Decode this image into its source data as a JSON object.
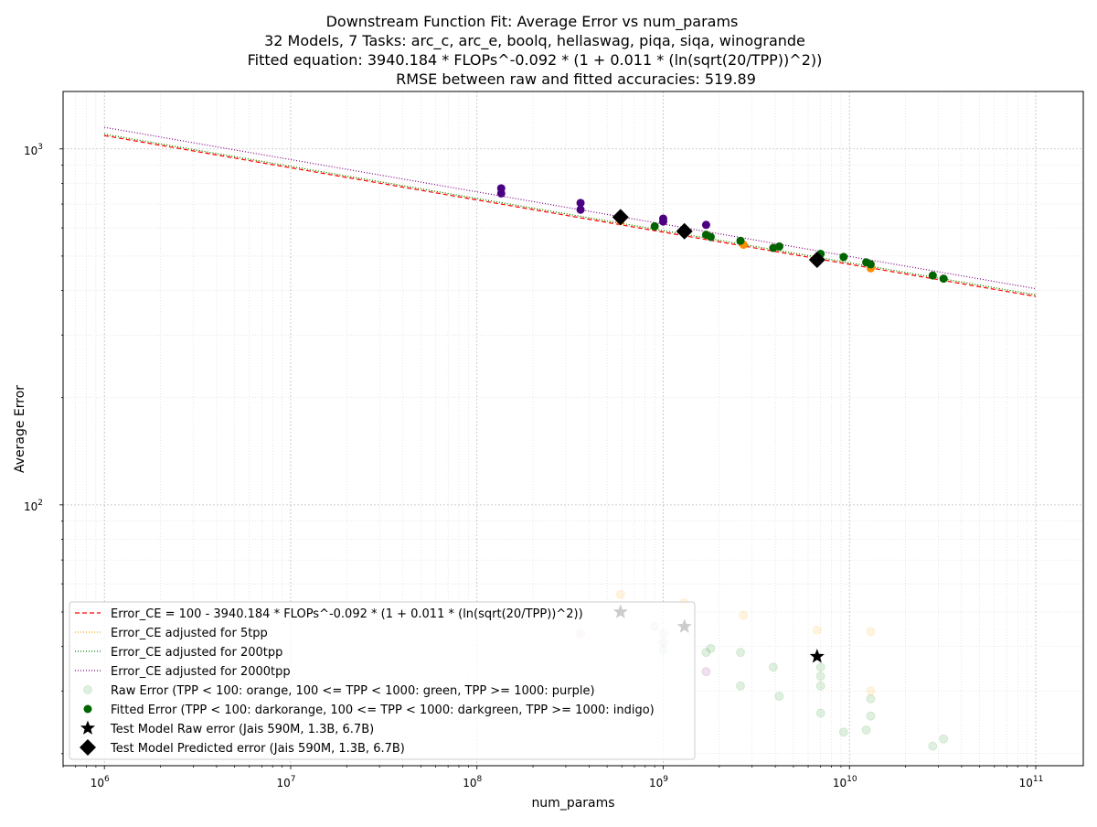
{
  "title_lines": [
    "Downstream Function Fit: Average Error vs num_params",
    "32 Models, 7 Tasks: arc_c, arc_e, boolq, hellaswag, piqa, siqa, winogrande",
    "Fitted equation: 3940.184 * FLOPs^-0.092 * (1 + 0.011 * (ln(sqrt(20/TPP))^2))",
    "RMSE between raw and fitted accuracies: 519.89"
  ],
  "colors": {
    "fit_line": "#ff0000",
    "adj_5tpp": "#ffa500",
    "adj_200tpp": "#008000",
    "adj_2000tpp": "#800080",
    "raw_orange": "#ffa500",
    "raw_green": "#008000",
    "raw_purple": "#800080",
    "fit_darkorange": "#ff8c00",
    "fit_darkgreen": "#006400",
    "fit_indigo": "#4b0082",
    "test": "#000000"
  },
  "chart_data": {
    "type": "scatter",
    "xlabel": "num_params",
    "ylabel": "Average Error",
    "xscale": "log",
    "yscale": "log",
    "xlim": [
      600000,
      180000000000
    ],
    "ylim": [
      18.5,
      1450
    ],
    "grid": true,
    "legend_position": "lower-left",
    "x_ticks": [
      {
        "value": 1000000,
        "base": "10",
        "exp": "6"
      },
      {
        "value": 10000000,
        "base": "10",
        "exp": "7"
      },
      {
        "value": 100000000,
        "base": "10",
        "exp": "8"
      },
      {
        "value": 1000000000,
        "base": "10",
        "exp": "9"
      },
      {
        "value": 10000000000,
        "base": "10",
        "exp": "10"
      },
      {
        "value": 100000000000,
        "base": "10",
        "exp": "11"
      }
    ],
    "y_ticks": [
      {
        "value": 100,
        "base": "10",
        "exp": "2"
      },
      {
        "value": 1000,
        "base": "10",
        "exp": "3"
      }
    ],
    "lines": [
      {
        "name": "Error_CE = 100 - 3940.184 * FLOPs^-0.092 * (1 + 0.011 * (ln(sqrt(20/TPP))^2))",
        "color": "#ff0000",
        "dash": "5,3",
        "x": [
          1000000,
          100000000000
        ],
        "y": [
          1090,
          385
        ]
      },
      {
        "name": "Error_CE adjusted for 5tpp",
        "color": "#ffa500",
        "dash": "1,2",
        "x": [
          1000000,
          100000000000
        ],
        "y": [
          1100,
          389
        ]
      },
      {
        "name": "Error_CE adjusted for 200tpp",
        "color": "#008000",
        "dash": "1,2",
        "x": [
          1000000,
          100000000000
        ],
        "y": [
          1100,
          389
        ]
      },
      {
        "name": "Error_CE adjusted for 2000tpp",
        "color": "#800080",
        "dash": "1,2",
        "x": [
          1000000,
          100000000000
        ],
        "y": [
          1150,
          405
        ]
      }
    ],
    "raw_error": {
      "name": "Raw Error (TPP < 100: orange, 100 <= TPP < 1000: green, TPP >= 1000: purple)",
      "points": [
        {
          "x": 590000000,
          "y": 56,
          "c": "orange"
        },
        {
          "x": 1300000000,
          "y": 53,
          "c": "orange"
        },
        {
          "x": 2700000000,
          "y": 49,
          "c": "orange"
        },
        {
          "x": 6700000000,
          "y": 44.5,
          "c": "orange"
        },
        {
          "x": 13000000000,
          "y": 44,
          "c": "orange"
        },
        {
          "x": 13000000000,
          "y": 30,
          "c": "orange"
        },
        {
          "x": 135000000,
          "y": 49,
          "c": "purple"
        },
        {
          "x": 360000000,
          "y": 43.5,
          "c": "purple"
        },
        {
          "x": 1000000000,
          "y": 41,
          "c": "purple"
        },
        {
          "x": 1700000000,
          "y": 34,
          "c": "purple"
        },
        {
          "x": 900000000,
          "y": 45.5,
          "c": "green"
        },
        {
          "x": 1000000000,
          "y": 43.5,
          "c": "green"
        },
        {
          "x": 1000000000,
          "y": 39,
          "c": "green"
        },
        {
          "x": 1700000000,
          "y": 38.5,
          "c": "green"
        },
        {
          "x": 1800000000,
          "y": 39.5,
          "c": "green"
        },
        {
          "x": 2600000000,
          "y": 38.5,
          "c": "green"
        },
        {
          "x": 2600000000,
          "y": 31,
          "c": "green"
        },
        {
          "x": 3900000000,
          "y": 35,
          "c": "green"
        },
        {
          "x": 4200000000,
          "y": 29,
          "c": "green"
        },
        {
          "x": 7000000000,
          "y": 35,
          "c": "green"
        },
        {
          "x": 7000000000,
          "y": 33,
          "c": "green"
        },
        {
          "x": 7000000000,
          "y": 31,
          "c": "green"
        },
        {
          "x": 7000000000,
          "y": 26,
          "c": "green"
        },
        {
          "x": 9300000000,
          "y": 23,
          "c": "green"
        },
        {
          "x": 12300000000,
          "y": 23.3,
          "c": "green"
        },
        {
          "x": 13000000000,
          "y": 28.5,
          "c": "green"
        },
        {
          "x": 13000000000,
          "y": 25.5,
          "c": "green"
        },
        {
          "x": 28000000000,
          "y": 21,
          "c": "green"
        },
        {
          "x": 32000000000,
          "y": 22,
          "c": "green"
        }
      ]
    },
    "fitted_error": {
      "name": "Fitted Error (TPP < 100: darkorange, 100 <= TPP < 1000: darkgreen, TPP >= 1000: indigo)",
      "points": [
        {
          "x": 135000000,
          "y": 775,
          "c": "indigo"
        },
        {
          "x": 135000000,
          "y": 750,
          "c": "indigo"
        },
        {
          "x": 360000000,
          "y": 705,
          "c": "indigo"
        },
        {
          "x": 360000000,
          "y": 675,
          "c": "indigo"
        },
        {
          "x": 1000000000,
          "y": 637,
          "c": "indigo"
        },
        {
          "x": 1000000000,
          "y": 625,
          "c": "indigo"
        },
        {
          "x": 1700000000,
          "y": 612,
          "c": "indigo"
        },
        {
          "x": 590000000,
          "y": 628,
          "c": "darkorange"
        },
        {
          "x": 1300000000,
          "y": 586,
          "c": "darkorange"
        },
        {
          "x": 2700000000,
          "y": 538,
          "c": "darkorange"
        },
        {
          "x": 6700000000,
          "y": 494,
          "c": "darkorange"
        },
        {
          "x": 13000000000,
          "y": 462,
          "c": "darkorange"
        },
        {
          "x": 900000000,
          "y": 606,
          "c": "darkgreen"
        },
        {
          "x": 1700000000,
          "y": 574,
          "c": "darkgreen"
        },
        {
          "x": 1800000000,
          "y": 566,
          "c": "darkgreen"
        },
        {
          "x": 2600000000,
          "y": 552,
          "c": "darkgreen"
        },
        {
          "x": 3900000000,
          "y": 527,
          "c": "darkgreen"
        },
        {
          "x": 4200000000,
          "y": 532,
          "c": "darkgreen"
        },
        {
          "x": 7000000000,
          "y": 507,
          "c": "darkgreen"
        },
        {
          "x": 9300000000,
          "y": 497,
          "c": "darkgreen"
        },
        {
          "x": 12300000000,
          "y": 480,
          "c": "darkgreen"
        },
        {
          "x": 13000000000,
          "y": 474,
          "c": "darkgreen"
        },
        {
          "x": 28000000000,
          "y": 441,
          "c": "darkgreen"
        },
        {
          "x": 32000000000,
          "y": 432,
          "c": "darkgreen"
        }
      ]
    },
    "test_raw": {
      "name": "Test Model Raw error (Jais 590M, 1.3B, 6.7B)",
      "points": [
        {
          "x": 590000000,
          "y": 50
        },
        {
          "x": 1300000000,
          "y": 45.5
        },
        {
          "x": 6700000000,
          "y": 37.5
        }
      ]
    },
    "test_pred": {
      "name": "Test Model Predicted error (Jais 590M, 1.3B, 6.7B)",
      "points": [
        {
          "x": 590000000,
          "y": 643
        },
        {
          "x": 1300000000,
          "y": 587
        },
        {
          "x": 6700000000,
          "y": 488
        }
      ]
    },
    "legend": [
      {
        "kind": "line",
        "color": "#ff0000",
        "dash": "5,3",
        "label": "Error_CE = 100 - 3940.184 * FLOPs^-0.092 * (1 + 0.011 * (ln(sqrt(20/TPP))^2))"
      },
      {
        "kind": "line",
        "color": "#ffa500",
        "dash": "1,2",
        "label": "Error_CE adjusted for 5tpp"
      },
      {
        "kind": "line",
        "color": "#008000",
        "dash": "1,2",
        "label": "Error_CE adjusted for 200tpp"
      },
      {
        "kind": "line",
        "color": "#800080",
        "dash": "1,2",
        "label": "Error_CE adjusted for 2000tpp"
      },
      {
        "kind": "raw",
        "color": "#008000",
        "label": "Raw Error (TPP < 100: orange, 100 <= TPP < 1000: green, TPP >= 1000: purple)"
      },
      {
        "kind": "fit",
        "color": "#006400",
        "label": "Fitted Error (TPP < 100: darkorange, 100 <= TPP < 1000: darkgreen, TPP >= 1000: indigo)"
      },
      {
        "kind": "star",
        "color": "#000000",
        "label": "Test Model Raw error (Jais 590M, 1.3B, 6.7B)"
      },
      {
        "kind": "diamond",
        "color": "#000000",
        "label": "Test Model Predicted error (Jais 590M, 1.3B, 6.7B)"
      }
    ]
  }
}
